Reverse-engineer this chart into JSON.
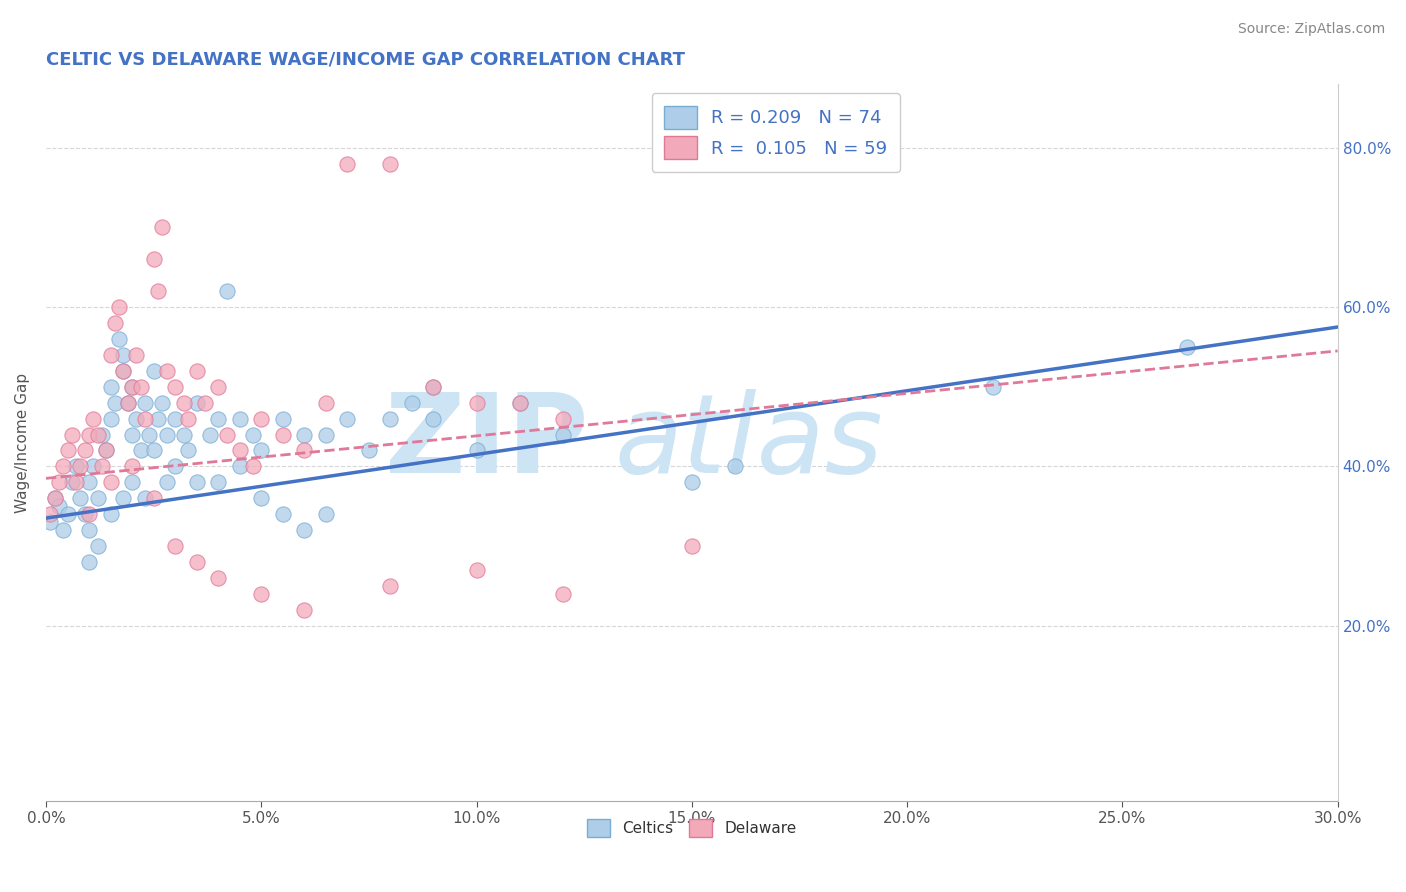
{
  "title": "CELTIC VS DELAWARE WAGE/INCOME GAP CORRELATION CHART",
  "source": "Source: ZipAtlas.com",
  "xlabel": "",
  "ylabel": "Wage/Income Gap",
  "xlim": [
    0.0,
    0.3
  ],
  "ylim": [
    -0.02,
    0.88
  ],
  "xtick_labels": [
    "0.0%",
    "5.0%",
    "10.0%",
    "15.0%",
    "20.0%",
    "25.0%",
    "30.0%"
  ],
  "xtick_vals": [
    0.0,
    0.05,
    0.1,
    0.15,
    0.2,
    0.25,
    0.3
  ],
  "ytick_labels_right": [
    "20.0%",
    "40.0%",
    "60.0%",
    "80.0%"
  ],
  "ytick_vals_right": [
    0.2,
    0.4,
    0.6,
    0.8
  ],
  "celtics_R": "0.209",
  "celtics_N": "74",
  "delaware_R": "0.105",
  "delaware_N": "59",
  "celtics_color": "#aecde8",
  "delaware_color": "#f2aaba",
  "celtics_edge_color": "#7aadd4",
  "delaware_edge_color": "#e07898",
  "celtics_line_color": "#4472c4",
  "delaware_line_color": "#e07898",
  "title_color": "#4472c4",
  "legend_text_color": "#4472c4",
  "watermark_color": "#cde4f5",
  "background_color": "#ffffff",
  "grid_color": "#cccccc",
  "celtics_x": [
    0.001,
    0.002,
    0.003,
    0.004,
    0.005,
    0.006,
    0.007,
    0.008,
    0.009,
    0.01,
    0.01,
    0.011,
    0.012,
    0.013,
    0.014,
    0.015,
    0.015,
    0.016,
    0.017,
    0.018,
    0.018,
    0.019,
    0.02,
    0.02,
    0.021,
    0.022,
    0.023,
    0.024,
    0.025,
    0.026,
    0.027,
    0.028,
    0.03,
    0.032,
    0.033,
    0.035,
    0.038,
    0.04,
    0.042,
    0.045,
    0.048,
    0.05,
    0.055,
    0.06,
    0.065,
    0.07,
    0.075,
    0.08,
    0.085,
    0.09,
    0.01,
    0.012,
    0.015,
    0.018,
    0.02,
    0.023,
    0.025,
    0.028,
    0.03,
    0.035,
    0.04,
    0.045,
    0.05,
    0.055,
    0.06,
    0.065,
    0.09,
    0.1,
    0.11,
    0.12,
    0.15,
    0.16,
    0.22,
    0.265
  ],
  "celtics_y": [
    0.33,
    0.36,
    0.35,
    0.32,
    0.34,
    0.38,
    0.4,
    0.36,
    0.34,
    0.32,
    0.38,
    0.4,
    0.36,
    0.44,
    0.42,
    0.5,
    0.46,
    0.48,
    0.56,
    0.52,
    0.54,
    0.48,
    0.5,
    0.44,
    0.46,
    0.42,
    0.48,
    0.44,
    0.52,
    0.46,
    0.48,
    0.44,
    0.46,
    0.44,
    0.42,
    0.48,
    0.44,
    0.46,
    0.62,
    0.46,
    0.44,
    0.42,
    0.46,
    0.44,
    0.44,
    0.46,
    0.42,
    0.46,
    0.48,
    0.5,
    0.28,
    0.3,
    0.34,
    0.36,
    0.38,
    0.36,
    0.42,
    0.38,
    0.4,
    0.38,
    0.38,
    0.4,
    0.36,
    0.34,
    0.32,
    0.34,
    0.46,
    0.42,
    0.48,
    0.44,
    0.38,
    0.4,
    0.5,
    0.55
  ],
  "delaware_x": [
    0.001,
    0.002,
    0.003,
    0.004,
    0.005,
    0.006,
    0.007,
    0.008,
    0.009,
    0.01,
    0.011,
    0.012,
    0.013,
    0.014,
    0.015,
    0.016,
    0.017,
    0.018,
    0.019,
    0.02,
    0.021,
    0.022,
    0.023,
    0.025,
    0.026,
    0.027,
    0.028,
    0.03,
    0.032,
    0.033,
    0.035,
    0.037,
    0.04,
    0.042,
    0.045,
    0.048,
    0.05,
    0.055,
    0.06,
    0.065,
    0.07,
    0.08,
    0.09,
    0.1,
    0.11,
    0.12,
    0.15,
    0.01,
    0.015,
    0.02,
    0.025,
    0.03,
    0.035,
    0.04,
    0.05,
    0.06,
    0.08,
    0.1,
    0.12
  ],
  "delaware_y": [
    0.34,
    0.36,
    0.38,
    0.4,
    0.42,
    0.44,
    0.38,
    0.4,
    0.42,
    0.44,
    0.46,
    0.44,
    0.4,
    0.42,
    0.54,
    0.58,
    0.6,
    0.52,
    0.48,
    0.5,
    0.54,
    0.5,
    0.46,
    0.66,
    0.62,
    0.7,
    0.52,
    0.5,
    0.48,
    0.46,
    0.52,
    0.48,
    0.5,
    0.44,
    0.42,
    0.4,
    0.46,
    0.44,
    0.42,
    0.48,
    0.78,
    0.78,
    0.5,
    0.48,
    0.48,
    0.46,
    0.3,
    0.34,
    0.38,
    0.4,
    0.36,
    0.3,
    0.28,
    0.26,
    0.24,
    0.22,
    0.25,
    0.27,
    0.24
  ],
  "celtics_trend_x0": 0.0,
  "celtics_trend_y0": 0.335,
  "celtics_trend_x1": 0.3,
  "celtics_trend_y1": 0.575,
  "delaware_trend_x0": 0.0,
  "delaware_trend_y0": 0.385,
  "delaware_trend_x1": 0.3,
  "delaware_trend_y1": 0.545
}
